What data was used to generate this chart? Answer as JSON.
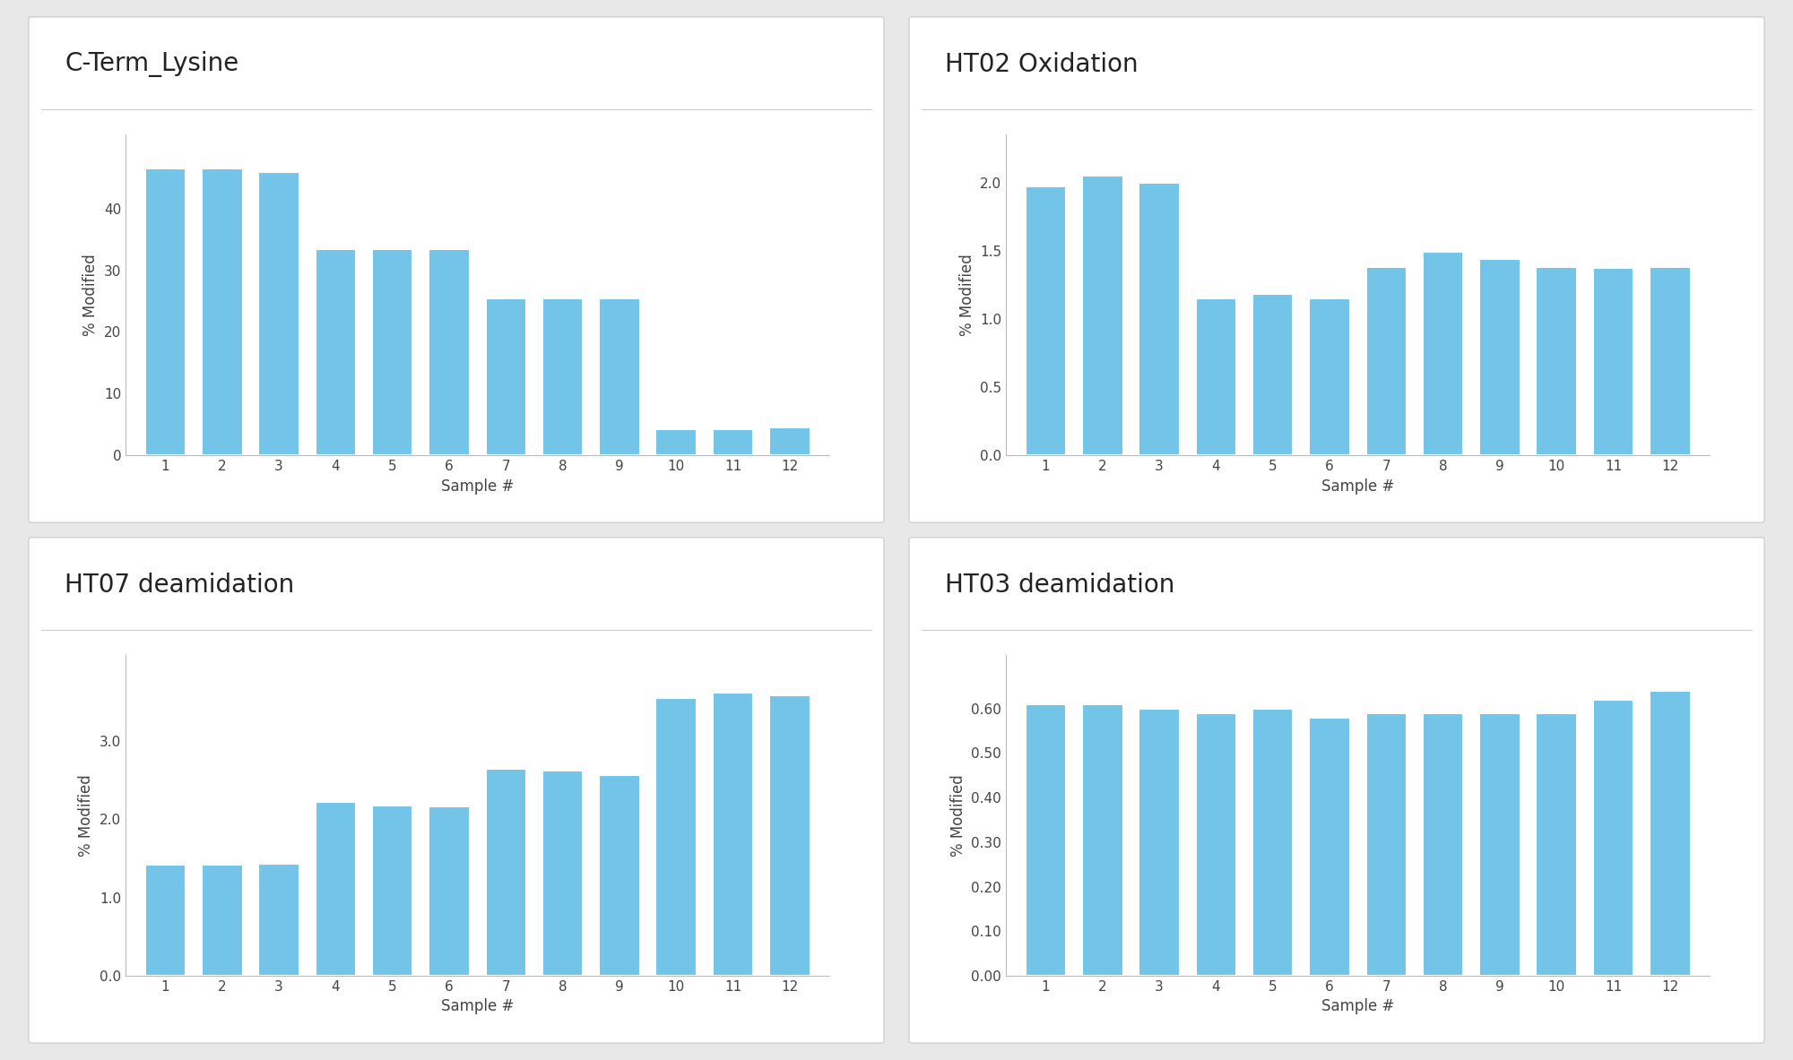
{
  "charts": [
    {
      "title": "C-Term_Lysine",
      "values": [
        46.5,
        46.5,
        46.0,
        33.5,
        33.5,
        33.5,
        25.5,
        25.5,
        25.5,
        4.2,
        4.2,
        4.5
      ],
      "ylabel": "% Modified",
      "xlabel": "Sample #",
      "ylim": [
        0,
        52
      ],
      "yticks": [
        0,
        10,
        20,
        30,
        40
      ],
      "ytick_labels": [
        "0",
        "10",
        "20",
        "30",
        "40"
      ]
    },
    {
      "title": "HT02 Oxidation",
      "values": [
        1.97,
        2.05,
        2.0,
        1.15,
        1.18,
        1.15,
        1.38,
        1.49,
        1.44,
        1.38,
        1.37,
        1.38
      ],
      "ylabel": "% Modified",
      "xlabel": "Sample #",
      "ylim": [
        0,
        2.35
      ],
      "yticks": [
        0.0,
        0.5,
        1.0,
        1.5,
        2.0
      ],
      "ytick_labels": [
        "0.0",
        "0.5",
        "1.0",
        "1.5",
        "2.0"
      ]
    },
    {
      "title": "HT07 deamidation",
      "values": [
        1.42,
        1.42,
        1.43,
        2.22,
        2.18,
        2.17,
        2.65,
        2.62,
        2.56,
        3.55,
        3.62,
        3.58
      ],
      "ylabel": "% Modified",
      "xlabel": "Sample #",
      "ylim": [
        0,
        4.1
      ],
      "yticks": [
        0.0,
        1.0,
        2.0,
        3.0
      ],
      "ytick_labels": [
        "0.0",
        "1.0",
        "2.0",
        "3.0"
      ]
    },
    {
      "title": "HT03 deamidation",
      "values": [
        0.61,
        0.61,
        0.6,
        0.59,
        0.6,
        0.58,
        0.59,
        0.59,
        0.59,
        0.59,
        0.62,
        0.64
      ],
      "ylabel": "% Modified",
      "xlabel": "Sample #",
      "ylim": [
        0,
        0.72
      ],
      "yticks": [
        0.0,
        0.1,
        0.2,
        0.3,
        0.4,
        0.5,
        0.6
      ],
      "ytick_labels": [
        "0.00",
        "0.10",
        "0.20",
        "0.30",
        "0.40",
        "0.50",
        "0.60"
      ]
    }
  ],
  "bar_color": "#72c5e8",
  "bar_edge_color": "white",
  "background_color": "#e8e8e8",
  "panel_bg_color": "#ffffff",
  "card_border_color": "#d0d0d0",
  "divider_color": "#cccccc",
  "title_fontsize": 20,
  "axis_label_fontsize": 12,
  "tick_fontsize": 11,
  "x_labels": [
    "1",
    "2",
    "3",
    "4",
    "5",
    "6",
    "7",
    "8",
    "9",
    "10",
    "11",
    "12"
  ]
}
